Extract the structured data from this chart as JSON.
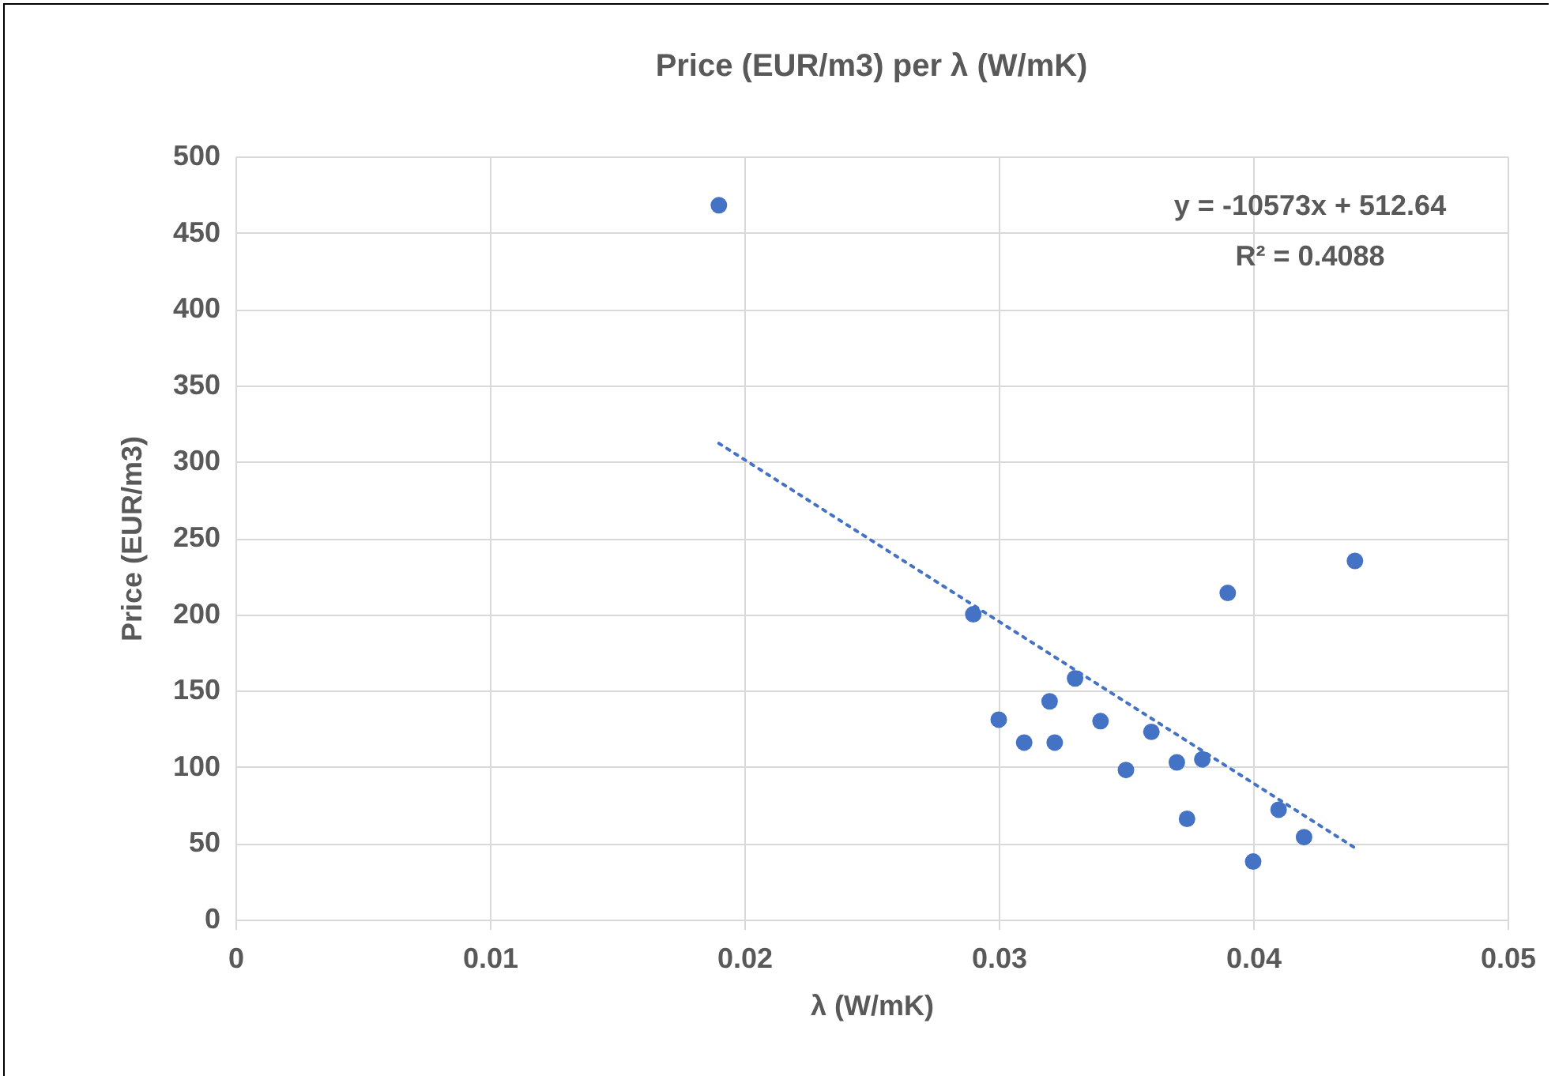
{
  "chart_data": {
    "type": "scatter",
    "title": "Price (EUR/m3) per λ (W/mK)",
    "xlabel": "λ (W/mK)",
    "ylabel": "Price (EUR/m3)",
    "annotations": [
      "y = -10573x + 512.64",
      "R² = 0.4088"
    ],
    "xlim": [
      0,
      0.05
    ],
    "xticks": [
      0,
      0.01,
      0.02,
      0.03,
      0.04,
      0.05
    ],
    "ylim": [
      0,
      500
    ],
    "yticks": [
      0,
      50,
      100,
      150,
      200,
      250,
      300,
      350,
      400,
      450,
      500
    ],
    "grid": true,
    "marker": "circle",
    "series": [
      {
        "color": "#4472c4",
        "x": [
          0.019,
          0.029,
          0.039,
          0.033,
          0.032,
          0.03,
          0.034,
          0.031,
          0.0322,
          0.036,
          0.035,
          0.037,
          0.038,
          0.0374,
          0.041,
          0.042,
          0.04,
          0.044
        ],
        "values": [
          468,
          200,
          214,
          158,
          143,
          131,
          130,
          116,
          116,
          123,
          98,
          103,
          105,
          66,
          72,
          54,
          38,
          235
        ]
      },
      {
        "type": "line",
        "color": "#4472c4",
        "line_style": "dotted",
        "marker": "none",
        "x": [
          0.019,
          0.044
        ],
        "values": [
          312,
          47
        ]
      }
    ]
  }
}
